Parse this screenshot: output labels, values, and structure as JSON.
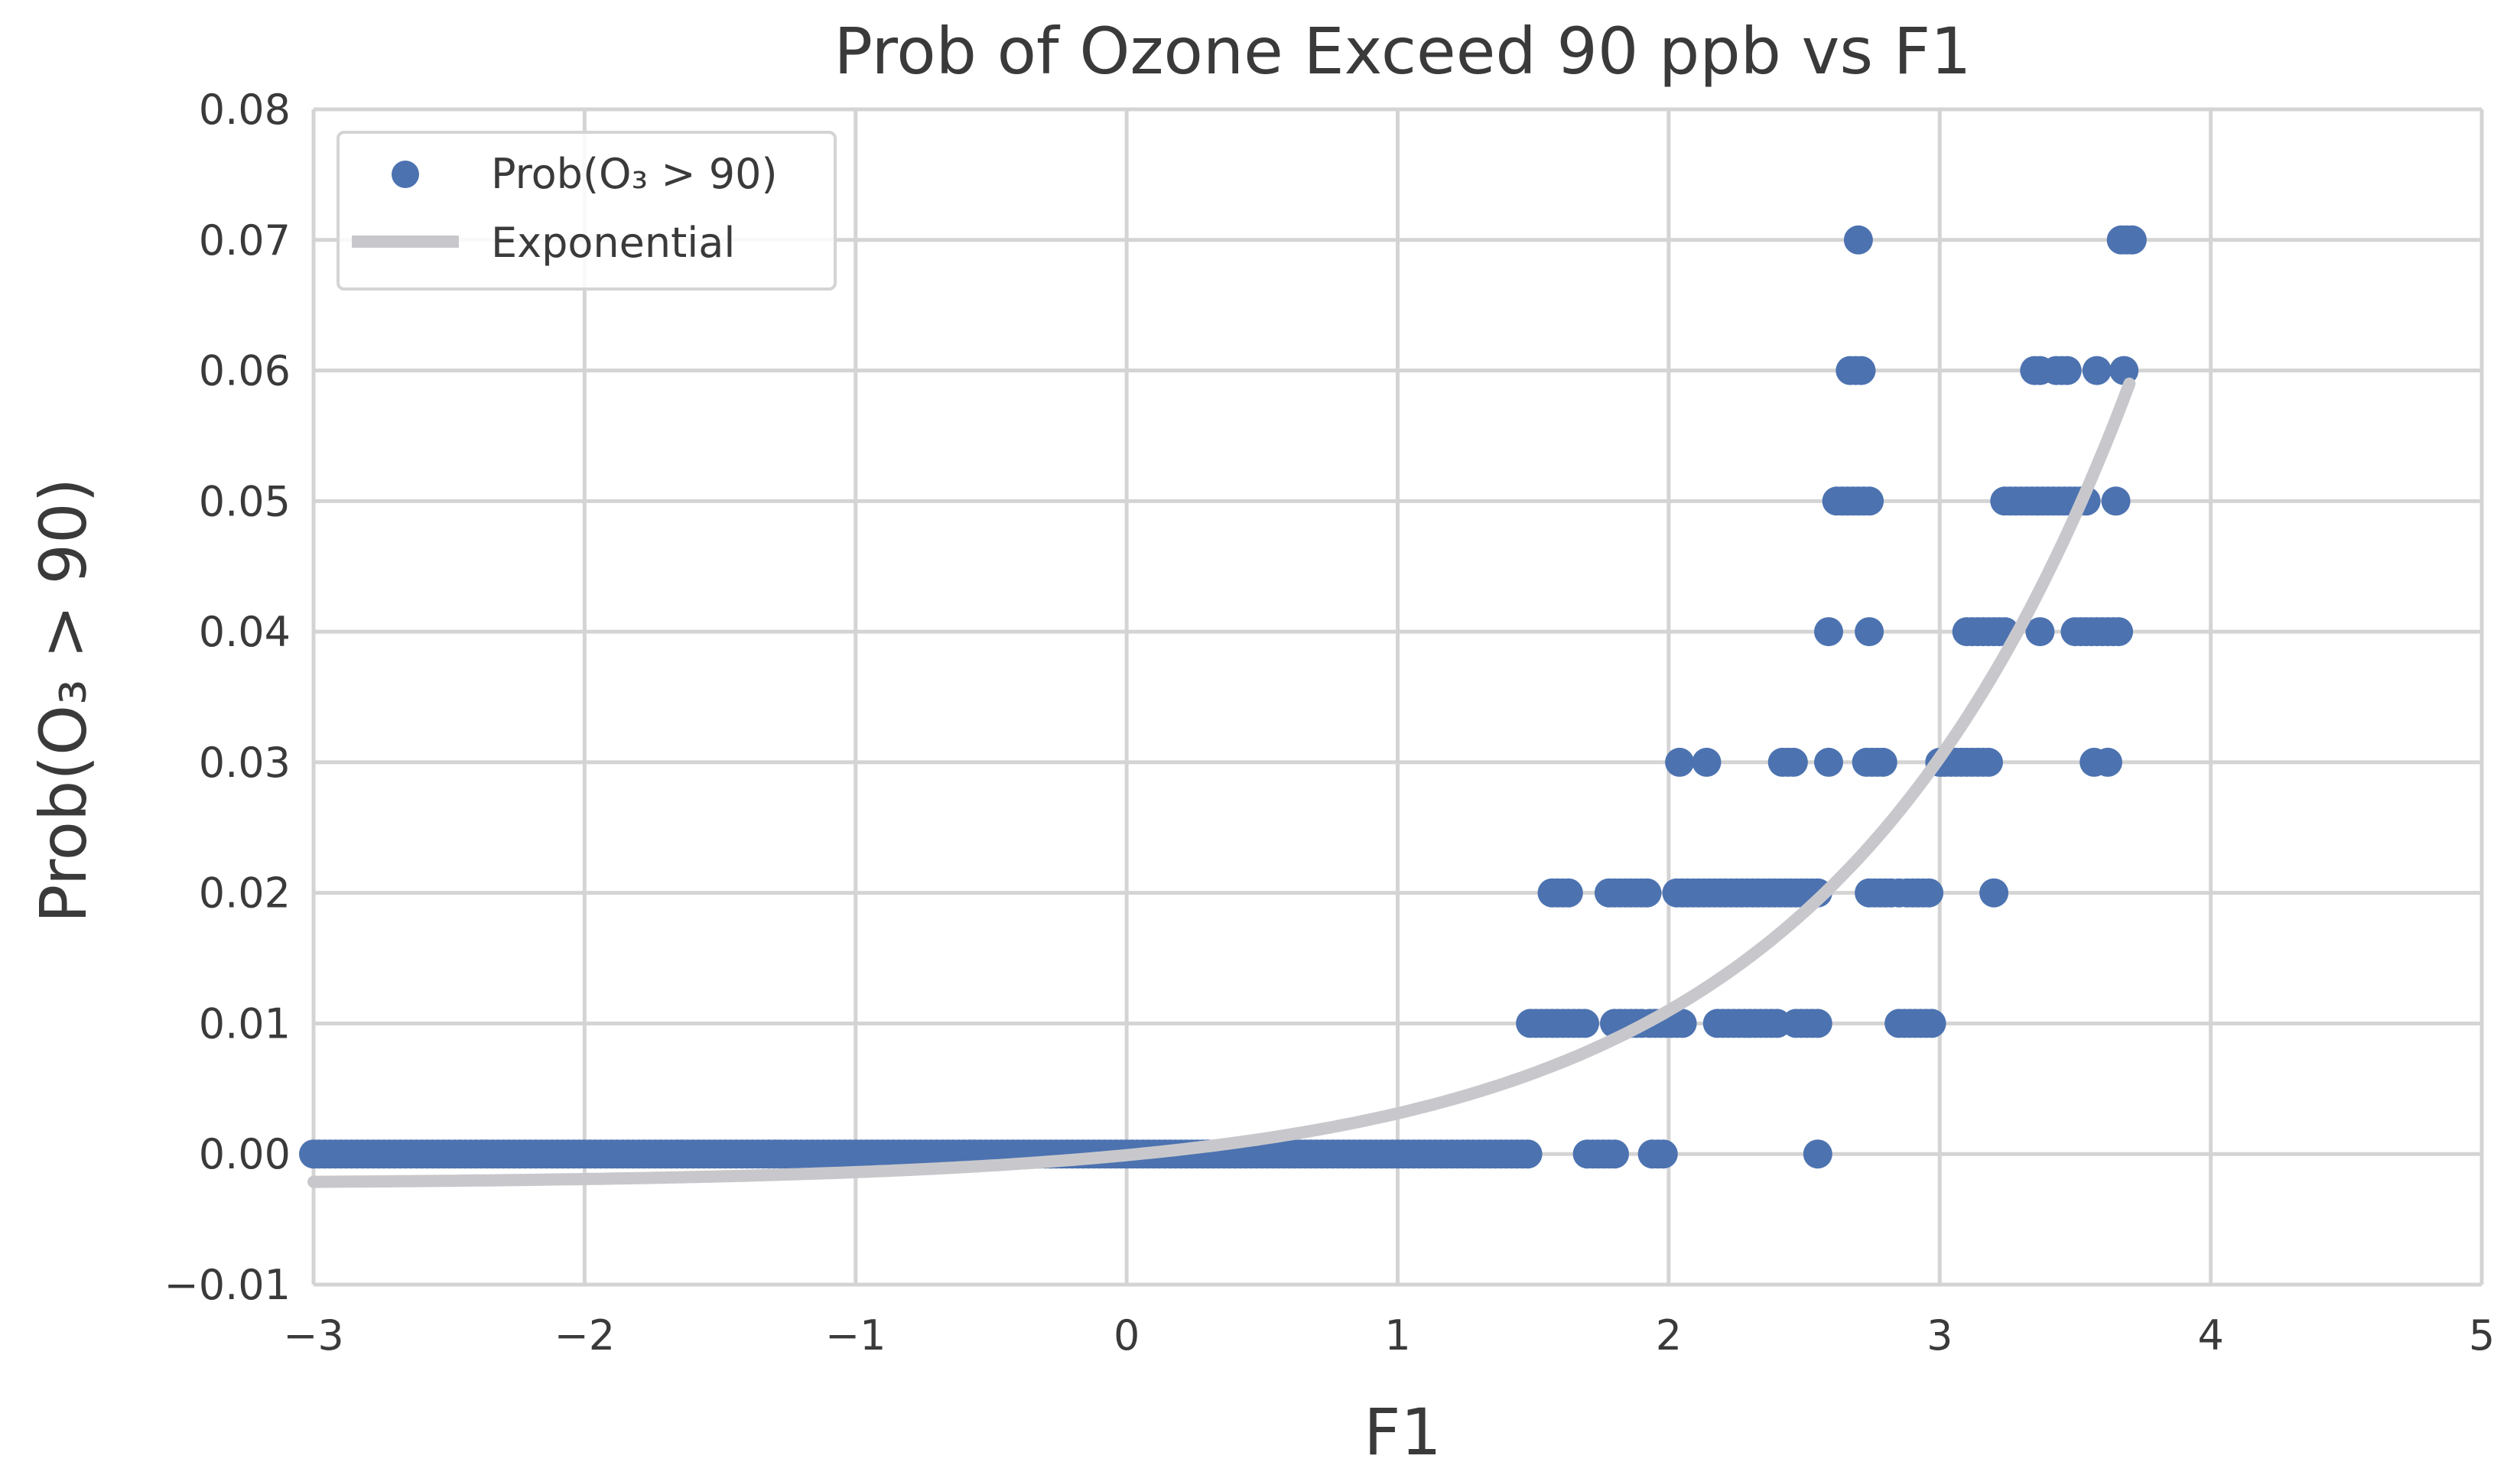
{
  "chart_data": {
    "type": "scatter",
    "title": "Prob of Ozone Exceed 90 ppb vs F1",
    "xlabel": "F1",
    "ylabel": "Prob(O₃ > 90)",
    "xlim": [
      -3,
      5
    ],
    "ylim": [
      -0.01,
      0.08
    ],
    "grid": true,
    "legend_position": "top-left",
    "x_ticks": [
      {
        "value": -3,
        "label": "−3"
      },
      {
        "value": -2,
        "label": "−2"
      },
      {
        "value": -1,
        "label": "−1"
      },
      {
        "value": 0,
        "label": "0"
      },
      {
        "value": 1,
        "label": "1"
      },
      {
        "value": 2,
        "label": "2"
      },
      {
        "value": 3,
        "label": "3"
      },
      {
        "value": 4,
        "label": "4"
      },
      {
        "value": 5,
        "label": "5"
      }
    ],
    "y_ticks": [
      {
        "value": -0.01,
        "label": "−0.01"
      },
      {
        "value": 0.0,
        "label": "0.00"
      },
      {
        "value": 0.01,
        "label": "0.01"
      },
      {
        "value": 0.02,
        "label": "0.02"
      },
      {
        "value": 0.03,
        "label": "0.03"
      },
      {
        "value": 0.04,
        "label": "0.04"
      },
      {
        "value": 0.05,
        "label": "0.05"
      },
      {
        "value": 0.06,
        "label": "0.06"
      },
      {
        "value": 0.07,
        "label": "0.07"
      },
      {
        "value": 0.08,
        "label": "0.08"
      }
    ],
    "series": [
      {
        "name": "Prob(O₃ > 90)",
        "kind": "scatter",
        "color": "#4c72b0",
        "segments": [
          {
            "y": 0.0,
            "x_start": -3.0,
            "x_end": 1.48
          },
          {
            "y": 0.0,
            "x_start": 1.7,
            "x_end": 1.8
          },
          {
            "y": 0.0,
            "x_start": 1.94,
            "x_end": 1.98
          },
          {
            "y": 0.01,
            "x_start": 1.49,
            "x_end": 1.7
          },
          {
            "y": 0.01,
            "x_start": 1.8,
            "x_end": 1.88
          },
          {
            "y": 0.01,
            "x_start": 1.93,
            "x_end": 2.06
          },
          {
            "y": 0.01,
            "x_start": 2.18,
            "x_end": 2.4
          },
          {
            "y": 0.01,
            "x_start": 2.47,
            "x_end": 2.56
          },
          {
            "y": 0.01,
            "x_start": 2.85,
            "x_end": 2.98
          },
          {
            "y": 0.02,
            "x_start": 1.57,
            "x_end": 1.64
          },
          {
            "y": 0.02,
            "x_start": 1.78,
            "x_end": 1.92
          },
          {
            "y": 0.02,
            "x_start": 2.03,
            "x_end": 2.56
          },
          {
            "y": 0.02,
            "x_start": 2.74,
            "x_end": 2.82
          },
          {
            "y": 0.02,
            "x_start": 2.88,
            "x_end": 2.96
          },
          {
            "y": 0.03,
            "x_start": 2.42,
            "x_end": 2.46
          },
          {
            "y": 0.03,
            "x_start": 2.73,
            "x_end": 2.8
          },
          {
            "y": 0.03,
            "x_start": 3.0,
            "x_end": 3.18
          },
          {
            "y": 0.04,
            "x_start": 3.1,
            "x_end": 3.24
          },
          {
            "y": 0.04,
            "x_start": 3.5,
            "x_end": 3.66
          },
          {
            "y": 0.05,
            "x_start": 2.62,
            "x_end": 2.74
          },
          {
            "y": 0.05,
            "x_start": 3.24,
            "x_end": 3.54
          },
          {
            "y": 0.06,
            "x_start": 3.35,
            "x_end": 3.38
          },
          {
            "y": 0.06,
            "x_start": 3.43,
            "x_end": 3.47
          },
          {
            "y": 0.06,
            "x_start": 2.67,
            "x_end": 2.72
          },
          {
            "y": 0.07,
            "x_start": 3.67,
            "x_end": 3.72
          }
        ],
        "points": [
          {
            "x": 2.55,
            "y": 0.0
          },
          {
            "x": 1.9,
            "y": 0.01
          },
          {
            "x": 2.85,
            "y": 0.02
          },
          {
            "x": 3.2,
            "y": 0.02
          },
          {
            "x": 2.04,
            "y": 0.03
          },
          {
            "x": 2.14,
            "y": 0.03
          },
          {
            "x": 2.59,
            "y": 0.03
          },
          {
            "x": 2.59,
            "y": 0.04
          },
          {
            "x": 2.74,
            "y": 0.04
          },
          {
            "x": 3.37,
            "y": 0.04
          },
          {
            "x": 3.65,
            "y": 0.05
          },
          {
            "x": 2.7,
            "y": 0.07
          },
          {
            "x": 3.57,
            "y": 0.03
          },
          {
            "x": 3.62,
            "y": 0.03
          },
          {
            "x": 3.58,
            "y": 0.06
          },
          {
            "x": 3.68,
            "y": 0.06
          }
        ]
      },
      {
        "name": "Exponential",
        "kind": "line",
        "color": "#c8c8cc",
        "model": "y = a*exp(b*x) + c",
        "params": {
          "a": 0.002193,
          "b": 0.9,
          "c": -0.00228
        },
        "x_range": [
          -3.0,
          3.7
        ]
      }
    ]
  }
}
